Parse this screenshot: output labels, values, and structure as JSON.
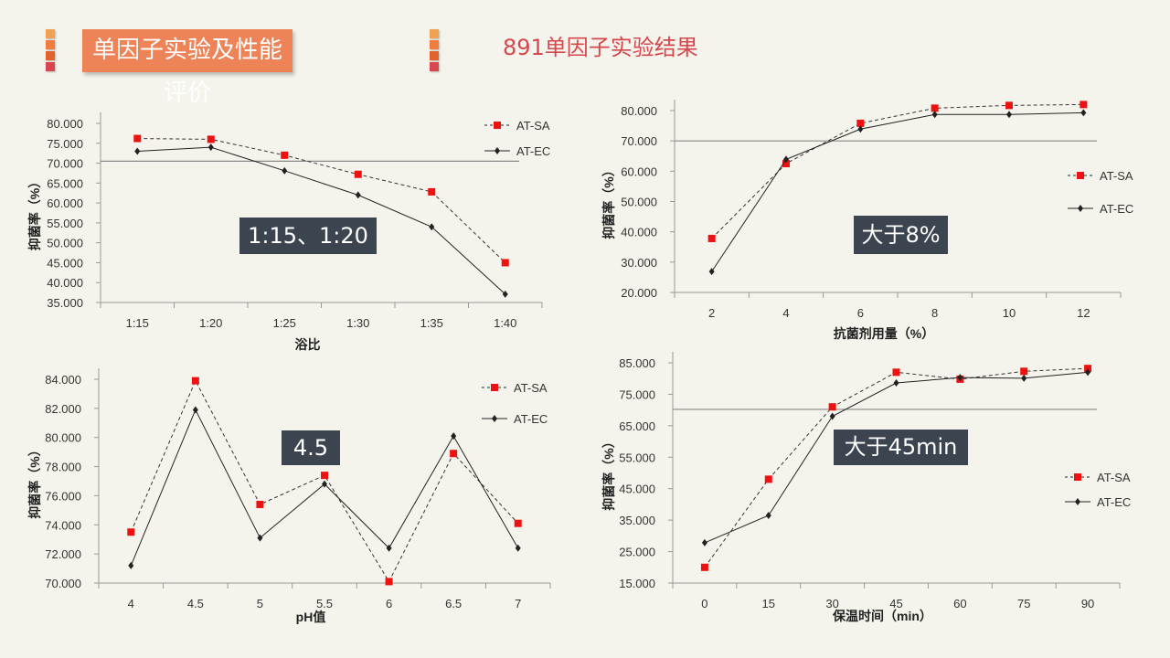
{
  "header": {
    "title": "单因子实验及性能评价",
    "subtitle": "891单因子实验结果",
    "deco_colors": [
      "#f0a154",
      "#f07d3e",
      "#e2622e",
      "#d9464f"
    ]
  },
  "colors": {
    "sa": "#ee1111",
    "ec": "#222222",
    "ref_line": "#888888",
    "accent": "#ee8357"
  },
  "chart_data": [
    {
      "type": "line",
      "title": "",
      "xlabel": "浴比",
      "ylabel": "抑菌率（%）",
      "categories": [
        "1:15",
        "1:20",
        "1:25",
        "1:30",
        "1:35",
        "1:40"
      ],
      "ylim": [
        35,
        80
      ],
      "yticks": [
        "35.000",
        "40.000",
        "45.000",
        "50.000",
        "55.000",
        "60.000",
        "65.000",
        "70.000",
        "75.000",
        "80.000"
      ],
      "reference_line": 70.5,
      "legend": "top-right",
      "annotation": "1:15、1:20",
      "series": [
        {
          "name": "AT-SA",
          "values": [
            76.2,
            76.0,
            72.0,
            67.2,
            62.8,
            45.0
          ]
        },
        {
          "name": "AT-EC",
          "values": [
            73.0,
            74.0,
            68.1,
            62.0,
            54.0,
            37.1
          ]
        }
      ]
    },
    {
      "type": "line",
      "title": "",
      "xlabel": "抗菌剂用量（%）",
      "ylabel": "抑菌率（%）",
      "categories": [
        "2",
        "4",
        "6",
        "8",
        "10",
        "12"
      ],
      "ylim": [
        20,
        80
      ],
      "yticks": [
        "20.000",
        "30.000",
        "40.000",
        "50.000",
        "60.000",
        "70.000",
        "80.000"
      ],
      "reference_line": 70,
      "legend": "right",
      "annotation": "大于8%",
      "series": [
        {
          "name": "AT-SA",
          "values": [
            37.8,
            62.5,
            75.8,
            80.8,
            81.7,
            82.0
          ]
        },
        {
          "name": "AT-EC",
          "values": [
            26.9,
            63.9,
            73.9,
            78.7,
            78.7,
            79.3
          ]
        }
      ]
    },
    {
      "type": "line",
      "title": "",
      "xlabel": "pH值",
      "ylabel": "抑菌率（%）",
      "categories": [
        "4",
        "4.5",
        "5",
        "5.5",
        "6",
        "6.5",
        "7"
      ],
      "ylim": [
        70,
        84
      ],
      "yticks": [
        "70.000",
        "72.000",
        "74.000",
        "76.000",
        "78.000",
        "80.000",
        "82.000",
        "84.000"
      ],
      "reference_line": null,
      "legend": "top-right",
      "annotation": "4.5",
      "series": [
        {
          "name": "AT-SA",
          "values": [
            73.5,
            83.9,
            75.4,
            77.4,
            70.1,
            78.9,
            74.1
          ]
        },
        {
          "name": "AT-EC",
          "values": [
            71.2,
            81.9,
            73.1,
            76.8,
            72.4,
            80.1,
            72.4
          ]
        }
      ]
    },
    {
      "type": "line",
      "title": "",
      "xlabel": "保温时间（min）",
      "ylabel": "抑菌率（%）",
      "categories": [
        "0",
        "15",
        "30",
        "45",
        "60",
        "75",
        "90"
      ],
      "ylim": [
        15,
        85
      ],
      "yticks": [
        "15.000",
        "25.000",
        "35.000",
        "45.000",
        "55.000",
        "65.000",
        "75.000",
        "85.000"
      ],
      "reference_line": 70.2,
      "legend": "right",
      "annotation": "大于45min",
      "series": [
        {
          "name": "AT-SA",
          "values": [
            20.0,
            48.0,
            71.0,
            82.0,
            79.8,
            82.3,
            83.2
          ]
        },
        {
          "name": "AT-EC",
          "values": [
            27.8,
            36.5,
            68.0,
            78.6,
            80.3,
            80.1,
            82.0
          ]
        }
      ]
    }
  ]
}
